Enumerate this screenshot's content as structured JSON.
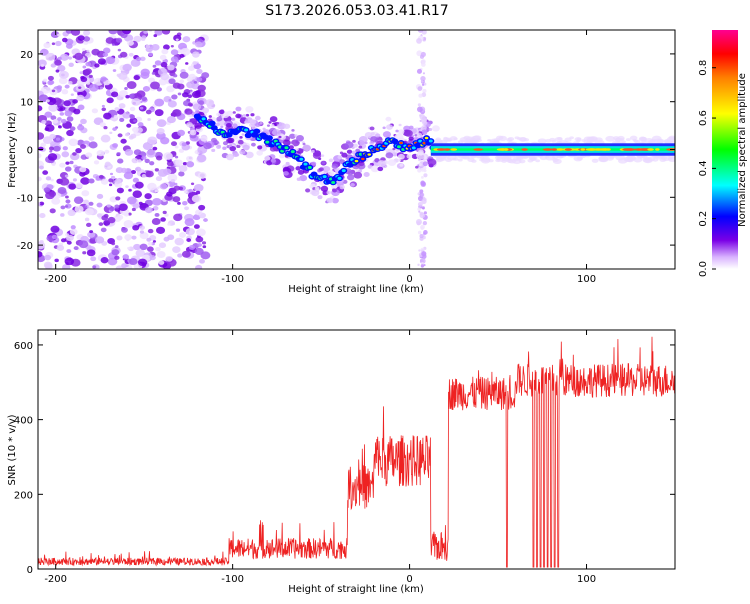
{
  "figure_title": "S173.2026.053.03.41.R17",
  "chart_data": [
    {
      "type": "heatmap",
      "title": "S173.2026.053.03.41.R17",
      "xlabel": "Height of straight line (km)",
      "ylabel": "Frequency (Hz)",
      "xlim": [
        -210,
        150
      ],
      "ylim": [
        -25,
        25
      ],
      "xticks": [
        -200,
        -100,
        0,
        100
      ],
      "yticks": [
        -20,
        -10,
        0,
        10,
        20
      ],
      "colorbar": {
        "label": "Normalized spectral amplitude",
        "range": [
          0,
          0.95
        ],
        "ticks": [
          0.0,
          0.2,
          0.4,
          0.6,
          0.8
        ],
        "colors": [
          "#ffffff",
          "#cc99ff",
          "#6600dd",
          "#0000ff",
          "#00ffff",
          "#00ff00",
          "#ffff00",
          "#ff8000",
          "#ff0000",
          "#ff0090"
        ]
      },
      "ridge": {
        "x": [
          -125,
          -115,
          -105,
          -95,
          -85,
          -75,
          -65,
          -55,
          -45,
          -40,
          -35,
          -30,
          -25,
          -20,
          -15,
          -10,
          -5,
          0,
          5,
          10,
          15,
          30,
          60,
          90,
          120,
          150
        ],
        "y": [
          8,
          6,
          3,
          4,
          3,
          1,
          -1,
          -5,
          -7,
          -6,
          -3,
          -2,
          -1,
          0,
          1,
          2,
          1,
          0,
          1,
          2,
          0,
          0,
          0,
          0,
          0,
          0
        ]
      },
      "vertical_stripe_x": 7
    },
    {
      "type": "line",
      "title": "",
      "xlabel": "Height of straight line (km)",
      "ylabel": "SNR (10 * v/v)",
      "xlim": [
        -210,
        150
      ],
      "ylim": [
        0,
        640
      ],
      "xticks": [
        -200,
        -100,
        0,
        100
      ],
      "yticks": [
        0,
        200,
        400,
        600
      ],
      "color": "#ee2222",
      "segments": [
        {
          "x": [
            -210,
            -102
          ],
          "mean": 20,
          "noise": 10
        },
        {
          "x": [
            -102,
            -35
          ],
          "mean": 55,
          "noise": 28
        },
        {
          "x": [
            -35,
            -20
          ],
          "mean": 220,
          "noise": 60
        },
        {
          "x": [
            -20,
            12
          ],
          "mean": 290,
          "noise": 70
        },
        {
          "x": [
            12,
            22
          ],
          "mean": 60,
          "noise": 40
        },
        {
          "x": [
            22,
            60
          ],
          "mean": 470,
          "noise": 45
        },
        {
          "x": [
            60,
            150
          ],
          "mean": 505,
          "noise": 45
        }
      ],
      "dropouts_x": [
        55,
        70,
        72,
        74,
        76,
        78,
        80,
        82,
        84
      ]
    }
  ]
}
